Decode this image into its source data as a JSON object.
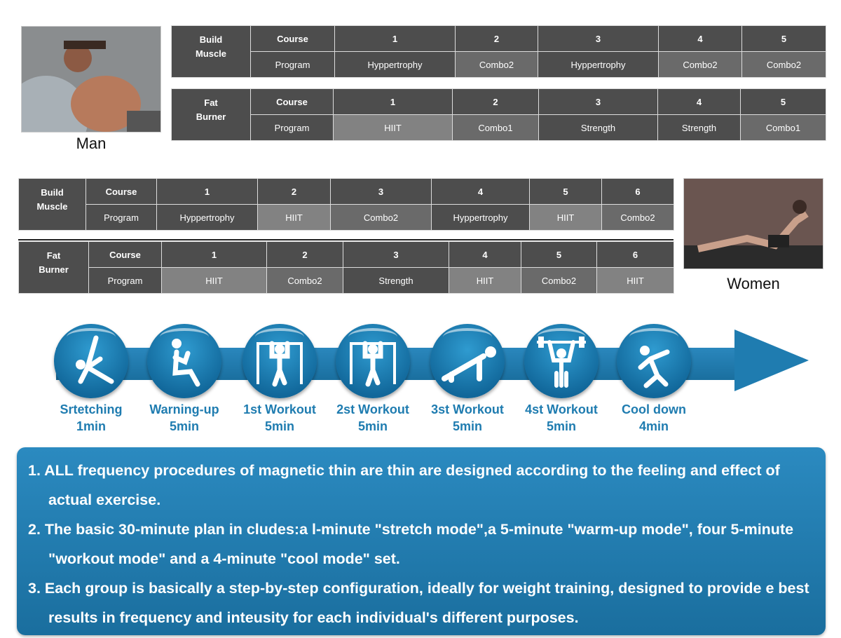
{
  "man": {
    "caption": "Man",
    "build_muscle": {
      "title": [
        "Build",
        "Muscle"
      ],
      "course_label": "Course",
      "program_label": "Program",
      "courses": [
        "1",
        "2",
        "3",
        "4",
        "5"
      ],
      "programs": [
        "Hyppertrophy",
        "Combo2",
        "Hyppertrophy",
        "Combo2",
        "Combo2"
      ],
      "shades": [
        "dark",
        "gray",
        "dark",
        "gray",
        "gray"
      ]
    },
    "fat_burner": {
      "title": [
        "Fat",
        "Burner"
      ],
      "course_label": "Course",
      "program_label": "Program",
      "courses": [
        "1",
        "2",
        "3",
        "4",
        "5"
      ],
      "programs": [
        "HIIT",
        "Combo1",
        "Strength",
        "Strength",
        "Combo1"
      ],
      "shades": [
        "light",
        "gray",
        "dark",
        "dark",
        "gray"
      ]
    }
  },
  "women": {
    "caption": "Women",
    "build_muscle": {
      "title": [
        "Build",
        "Muscle"
      ],
      "course_label": "Course",
      "program_label": "Program",
      "courses": [
        "1",
        "2",
        "3",
        "4",
        "5",
        "6"
      ],
      "programs": [
        "Hyppertrophy",
        "HIIT",
        "Combo2",
        "Hyppertrophy",
        "HIIT",
        "Combo2"
      ],
      "shades": [
        "dark",
        "light",
        "gray",
        "dark",
        "light",
        "gray"
      ]
    },
    "fat_burner": {
      "title": [
        "Fat",
        "Burner"
      ],
      "course_label": "Course",
      "program_label": "Program",
      "courses": [
        "1",
        "2",
        "3",
        "4",
        "5",
        "6"
      ],
      "programs": [
        "HIIT",
        "Combo2",
        "Strength",
        "HIIT",
        "Combo2",
        "HIIT"
      ],
      "shades": [
        "light",
        "gray",
        "dark",
        "light",
        "gray",
        "light"
      ]
    }
  },
  "steps": [
    {
      "name": "Srtetching",
      "time": "1min",
      "icon": "stretching-icon"
    },
    {
      "name": "Warning-up",
      "time": "5min",
      "icon": "sit-up-icon"
    },
    {
      "name": "1st Workout",
      "time": "5min",
      "icon": "pull-up-icon"
    },
    {
      "name": "2st Workout",
      "time": "5min",
      "icon": "pull-up-icon"
    },
    {
      "name": "3st Workout",
      "time": "5min",
      "icon": "push-up-icon"
    },
    {
      "name": "4st Workout",
      "time": "5min",
      "icon": "weightlifting-icon"
    },
    {
      "name": "Cool down",
      "time": "4min",
      "icon": "cool-down-stretch-icon"
    }
  ],
  "notes": [
    "1. ALL frequency procedures of magnetic thin are thin are designed according to the feeling and effect of actual exercise.",
    "2. The basic 30-minute plan in cludes:a l-minute \"stretch mode\",a 5-minute \"warm-up mode\", four 5-minute \"workout mode\" and a 4-minute \"cool mode\" set.",
    "3. Each group is basically a step-by-step configuration, ideally for weight training, designed to provide e best results in frequency and inteusity for each individual's different purposes."
  ],
  "colors": {
    "accent_blue": "#1f7cb0",
    "cell_dark": "#4d4d4d",
    "cell_gray": "#6a6a6a",
    "cell_light": "#828282"
  }
}
